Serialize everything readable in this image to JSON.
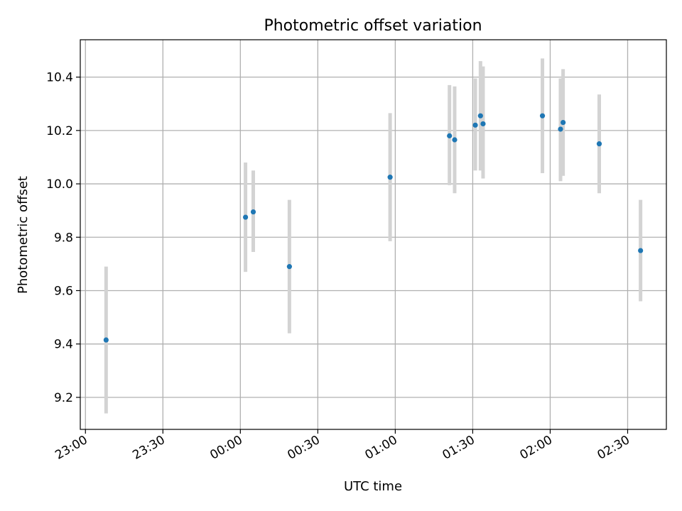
{
  "chart_data": {
    "type": "scatter",
    "title": "Photometric offset variation",
    "xlabel": "UTC time",
    "ylabel": "Photometric offset",
    "grid": true,
    "x_ticks": [
      "23:00",
      "23:30",
      "00:00",
      "00:30",
      "01:00",
      "01:30",
      "02:00",
      "02:30"
    ],
    "y_ticks": [
      "9.2",
      "9.4",
      "9.6",
      "9.8",
      "10.0",
      "10.2",
      "10.4"
    ],
    "ylim": [
      9.08,
      10.54
    ],
    "xlim": [
      "22:58",
      "02:45"
    ],
    "colors": {
      "point": "#1f77b4",
      "errorbar": "#d3d3d3",
      "grid": "#b0b0b0"
    },
    "points": [
      {
        "x": "23:08",
        "y": 9.415,
        "err_low": 9.14,
        "err_high": 9.69
      },
      {
        "x": "00:02",
        "y": 9.875,
        "err_low": 9.67,
        "err_high": 10.08
      },
      {
        "x": "00:05",
        "y": 9.895,
        "err_low": 9.745,
        "err_high": 10.05
      },
      {
        "x": "00:19",
        "y": 9.69,
        "err_low": 9.44,
        "err_high": 9.94
      },
      {
        "x": "00:58",
        "y": 10.025,
        "err_low": 9.785,
        "err_high": 10.265
      },
      {
        "x": "01:21",
        "y": 10.18,
        "err_low": 9.995,
        "err_high": 10.37
      },
      {
        "x": "01:23",
        "y": 10.165,
        "err_low": 9.965,
        "err_high": 10.365
      },
      {
        "x": "01:31",
        "y": 10.22,
        "err_low": 10.05,
        "err_high": 10.395
      },
      {
        "x": "01:33",
        "y": 10.255,
        "err_low": 10.05,
        "err_high": 10.46
      },
      {
        "x": "01:34",
        "y": 10.225,
        "err_low": 10.02,
        "err_high": 10.44
      },
      {
        "x": "01:57",
        "y": 10.255,
        "err_low": 10.04,
        "err_high": 10.47
      },
      {
        "x": "02:04",
        "y": 10.205,
        "err_low": 10.01,
        "err_high": 10.395
      },
      {
        "x": "02:05",
        "y": 10.23,
        "err_low": 10.03,
        "err_high": 10.43
      },
      {
        "x": "02:19",
        "y": 10.15,
        "err_low": 9.965,
        "err_high": 10.335
      },
      {
        "x": "02:35",
        "y": 9.75,
        "err_low": 9.56,
        "err_high": 9.94
      }
    ]
  }
}
